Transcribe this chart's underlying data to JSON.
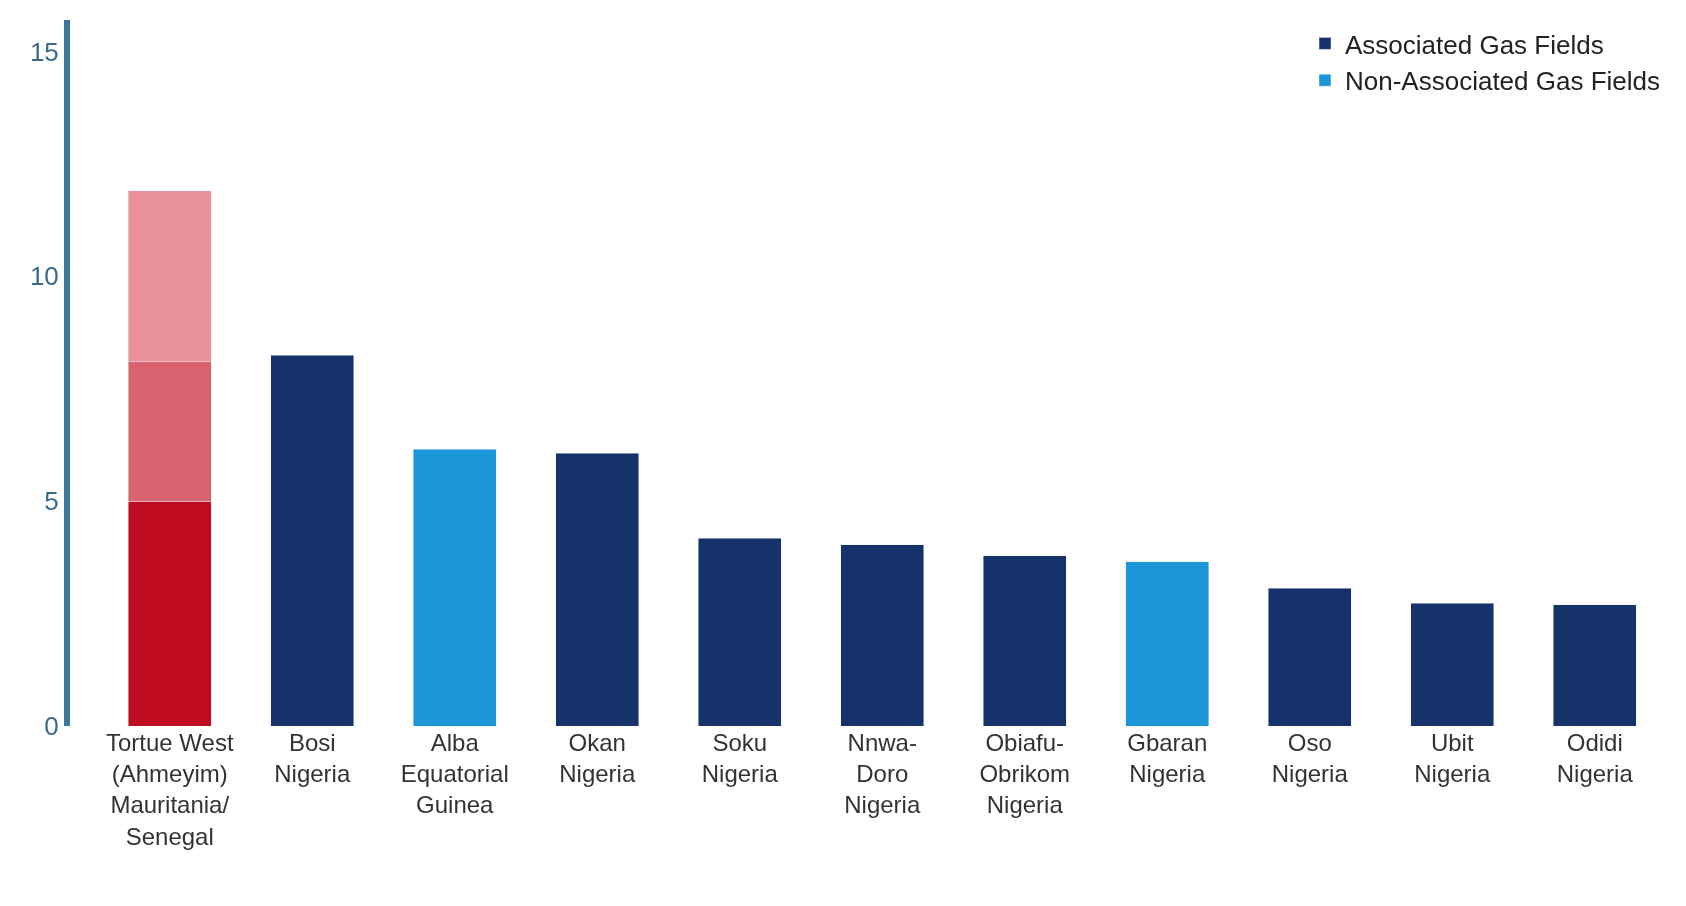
{
  "chart_data": {
    "type": "bar",
    "stacked": true,
    "categories": [
      "Tortue West\n(Ahmeyim)\nMauritania/\nSenegal",
      "Bosi\nNigeria",
      "Alba\nEquatorial\nGuinea",
      "Okan\nNigeria",
      "Soku\nNigeria",
      "Nnwa-\nDoro\nNigeria",
      "Obiafu-\nObrikom\nNigeria",
      "Gbaran\nNigeria",
      "Oso\nNigeria",
      "Ubit\nNigeria",
      "Odidi\nNigeria"
    ],
    "series": [
      {
        "name": "Associated Gas Fields",
        "color": "#15326a",
        "values": [
          null,
          8.25,
          null,
          6.07,
          4.17,
          4.03,
          3.79,
          null,
          3.06,
          2.73,
          2.7
        ]
      },
      {
        "name": "Non-Associated Gas Fields",
        "color": "#1d96d7",
        "values": [
          null,
          null,
          6.15,
          null,
          null,
          null,
          null,
          3.65,
          null,
          null,
          null
        ]
      },
      {
        "color": "#c00c20",
        "values": [
          5.0,
          null,
          null,
          null,
          null,
          null,
          null,
          null,
          null,
          null,
          null
        ]
      },
      {
        "color": "#d9636f",
        "values": [
          3.1,
          null,
          null,
          null,
          null,
          null,
          null,
          null,
          null,
          null,
          null
        ]
      },
      {
        "color": "#e8919a",
        "values": [
          3.8,
          null,
          null,
          null,
          null,
          null,
          null,
          null,
          null,
          null,
          null
        ]
      }
    ],
    "ylim": [
      0,
      15.7
    ],
    "yticks": [
      0,
      5,
      10,
      15
    ],
    "legend": "top right"
  }
}
